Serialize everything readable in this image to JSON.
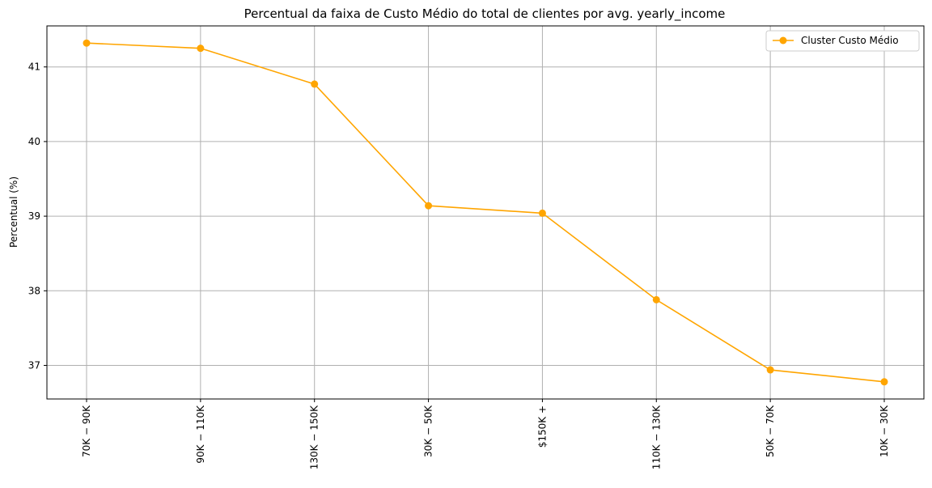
{
  "chart_data": {
    "type": "line",
    "title": "Percentual da faixa de Custo Médio do total de clientes por avg. yearly_income",
    "xlabel": "",
    "ylabel": "Percentual (%)",
    "categories": [
      "70K − 90K",
      "90K − 110K",
      "130K − 150K",
      "30K − 50K",
      "$150K +",
      "110K − 130K",
      "50K − 70K",
      "10K − 30K"
    ],
    "series": [
      {
        "name": "Cluster Custo Médio",
        "values": [
          41.32,
          41.25,
          40.77,
          39.14,
          39.04,
          37.88,
          36.94,
          36.78
        ],
        "color": "#FFA500"
      }
    ],
    "ylim": [
      36.55,
      41.55
    ],
    "yticks": [
      37,
      38,
      39,
      40,
      41
    ],
    "grid": true,
    "legend_position": "top-right"
  }
}
